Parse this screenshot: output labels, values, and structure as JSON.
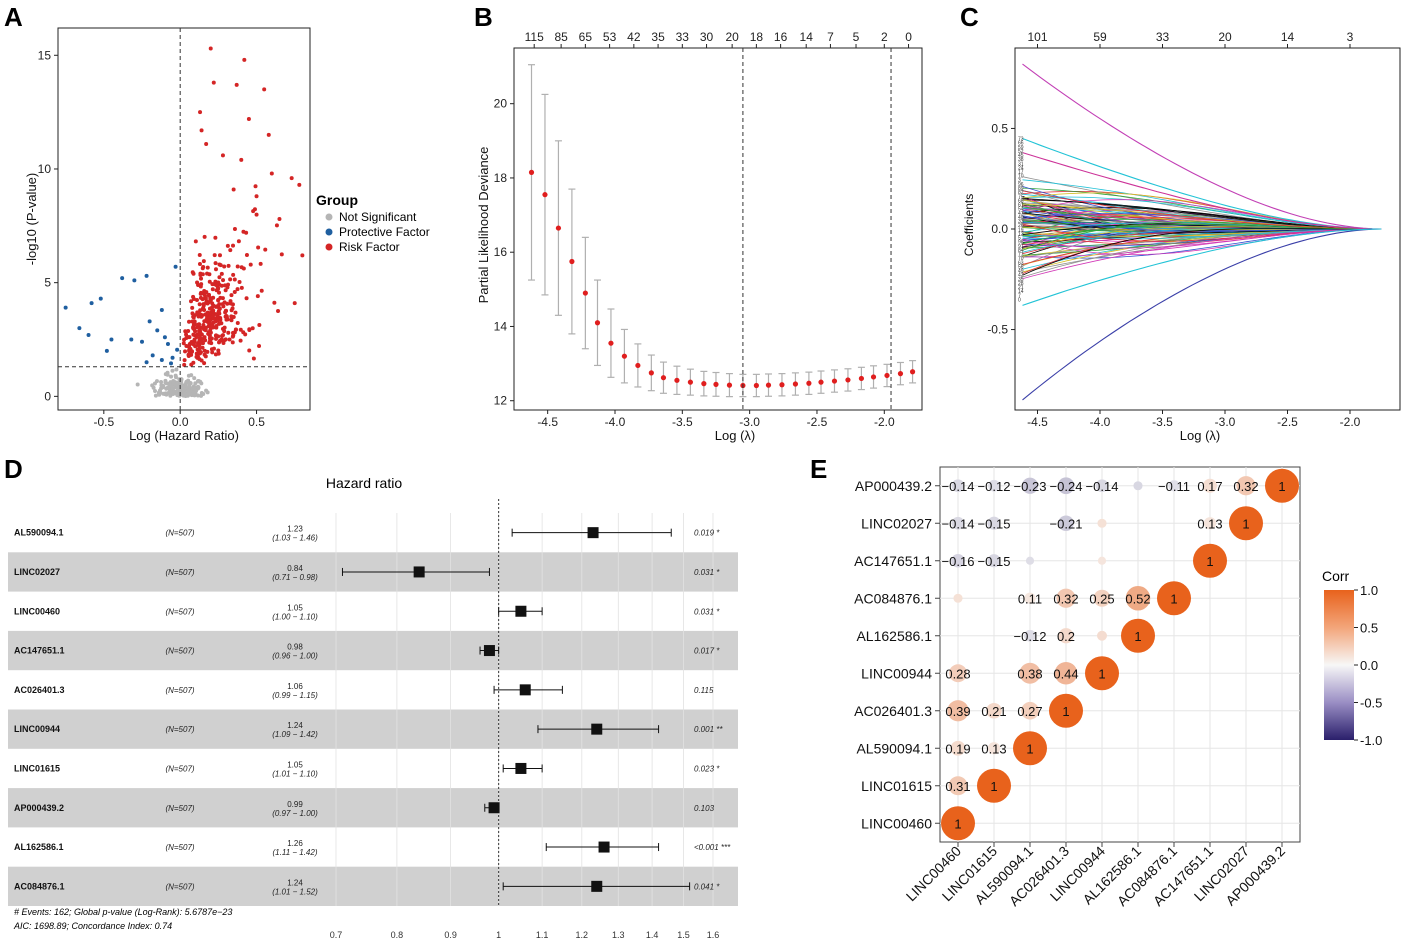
{
  "panels": {
    "a": "A",
    "b": "B",
    "c": "C",
    "d": "D",
    "e": "E"
  },
  "chart_data": [
    {
      "type": "scatter",
      "id": "A",
      "title": "",
      "xlabel": "Log (Hazard Ratio)",
      "ylabel": "-log10 (P-value)",
      "xlim": [
        -0.8,
        0.85
      ],
      "ylim": [
        -0.6,
        16.2
      ],
      "xticks": [
        -0.5,
        0.0,
        0.5
      ],
      "yticks": [
        0,
        5,
        10,
        15
      ],
      "vline": 0,
      "hline": 1.3,
      "legend": {
        "title": "Group",
        "entries": [
          {
            "label": "Not Significant",
            "color": "#b5b5b5"
          },
          {
            "label": "Protective Factor",
            "color": "#1f5fa0"
          },
          {
            "label": "Risk Factor",
            "color": "#d42525"
          }
        ]
      },
      "protective": [
        {
          "x": -0.75,
          "y": 3.9
        },
        {
          "x": -0.58,
          "y": 4.1
        },
        {
          "x": -0.52,
          "y": 4.3
        },
        {
          "x": -0.38,
          "y": 5.2
        },
        {
          "x": -0.3,
          "y": 5.1
        },
        {
          "x": -0.22,
          "y": 5.3
        },
        {
          "x": -0.12,
          "y": 3.8
        },
        {
          "x": -0.2,
          "y": 3.3
        },
        {
          "x": -0.66,
          "y": 3.0
        },
        {
          "x": -0.6,
          "y": 2.7
        },
        {
          "x": -0.45,
          "y": 2.5
        },
        {
          "x": -0.32,
          "y": 2.5
        },
        {
          "x": -0.25,
          "y": 2.4
        },
        {
          "x": -0.15,
          "y": 2.9
        },
        {
          "x": -0.1,
          "y": 2.6
        },
        {
          "x": -0.08,
          "y": 2.3
        },
        {
          "x": -0.48,
          "y": 2.0
        },
        {
          "x": -0.18,
          "y": 1.8
        },
        {
          "x": -0.12,
          "y": 1.6
        },
        {
          "x": -0.05,
          "y": 1.7
        },
        {
          "x": -0.22,
          "y": 1.5
        },
        {
          "x": -0.06,
          "y": 1.45
        },
        {
          "x": -0.02,
          "y": 2.05
        },
        {
          "x": -0.03,
          "y": 5.7
        }
      ],
      "risk_extreme": [
        {
          "x": 0.2,
          "y": 15.3
        },
        {
          "x": 0.42,
          "y": 14.8
        },
        {
          "x": 0.22,
          "y": 13.8
        },
        {
          "x": 0.37,
          "y": 13.7
        },
        {
          "x": 0.55,
          "y": 13.5
        },
        {
          "x": 0.13,
          "y": 12.5
        },
        {
          "x": 0.45,
          "y": 12.2
        },
        {
          "x": 0.58,
          "y": 11.5
        },
        {
          "x": 0.14,
          "y": 11.7
        },
        {
          "x": 0.17,
          "y": 11.1
        },
        {
          "x": 0.28,
          "y": 10.6
        },
        {
          "x": 0.4,
          "y": 10.4
        },
        {
          "x": 0.6,
          "y": 9.8
        },
        {
          "x": 0.78,
          "y": 9.3
        },
        {
          "x": 0.73,
          "y": 9.6
        },
        {
          "x": 0.8,
          "y": 6.2
        },
        {
          "x": 0.75,
          "y": 4.1
        },
        {
          "x": 0.65,
          "y": 7.8
        },
        {
          "x": 0.5,
          "y": 8.8
        },
        {
          "x": 0.35,
          "y": 9.1
        }
      ],
      "risk_count_generated": 380,
      "not_significant_count_generated": 190
    },
    {
      "type": "errorbar",
      "id": "B",
      "xlabel": "Log (λ)",
      "ylabel": "Partial Likelihood Deviance",
      "xlim": [
        -4.75,
        -1.72
      ],
      "ylim": [
        11.75,
        21.5
      ],
      "xticks": [
        -4.5,
        -4.0,
        -3.5,
        -3.0,
        -2.5,
        -2.0
      ],
      "yticks": [
        12,
        14,
        16,
        18,
        20
      ],
      "top_ticks": [
        {
          "x": -4.6,
          "label": "115"
        },
        {
          "x": -4.4,
          "label": "85"
        },
        {
          "x": -4.22,
          "label": "65"
        },
        {
          "x": -4.04,
          "label": "53"
        },
        {
          "x": -3.86,
          "label": "42"
        },
        {
          "x": -3.68,
          "label": "35"
        },
        {
          "x": -3.5,
          "label": "33"
        },
        {
          "x": -3.32,
          "label": "30"
        },
        {
          "x": -3.13,
          "label": "20"
        },
        {
          "x": -2.95,
          "label": "18"
        },
        {
          "x": -2.77,
          "label": "16"
        },
        {
          "x": -2.58,
          "label": "14"
        },
        {
          "x": -2.4,
          "label": "7"
        },
        {
          "x": -2.21,
          "label": "5"
        },
        {
          "x": -2.0,
          "label": "2"
        },
        {
          "x": -1.82,
          "label": "0"
        }
      ],
      "vlines": [
        -3.05,
        -1.95
      ],
      "x": [
        -4.62,
        -4.52,
        -4.42,
        -4.32,
        -4.22,
        -4.13,
        -4.03,
        -3.93,
        -3.83,
        -3.73,
        -3.64,
        -3.54,
        -3.44,
        -3.34,
        -3.25,
        -3.15,
        -3.05,
        -2.95,
        -2.86,
        -2.76,
        -2.66,
        -2.56,
        -2.47,
        -2.37,
        -2.27,
        -2.17,
        -2.08,
        -1.98,
        -1.88,
        -1.79
      ],
      "mean": [
        18.15,
        17.55,
        16.65,
        15.75,
        14.9,
        14.1,
        13.55,
        13.2,
        12.95,
        12.75,
        12.62,
        12.55,
        12.5,
        12.46,
        12.44,
        12.42,
        12.41,
        12.41,
        12.42,
        12.43,
        12.45,
        12.47,
        12.5,
        12.53,
        12.56,
        12.6,
        12.64,
        12.68,
        12.73,
        12.78
      ],
      "err": [
        2.9,
        2.7,
        2.35,
        1.95,
        1.5,
        1.15,
        0.92,
        0.72,
        0.58,
        0.48,
        0.42,
        0.38,
        0.35,
        0.33,
        0.32,
        0.31,
        0.3,
        0.3,
        0.3,
        0.3,
        0.3,
        0.3,
        0.3,
        0.3,
        0.3,
        0.3,
        0.3,
        0.3,
        0.3,
        0.3
      ]
    },
    {
      "type": "line",
      "id": "C",
      "xlabel": "Log (λ)",
      "ylabel": "Coefficients",
      "xlim": [
        -4.68,
        -1.6
      ],
      "ylim": [
        -0.9,
        0.9
      ],
      "xticks": [
        -4.5,
        -4.0,
        -3.5,
        -3.0,
        -2.5,
        -2.0
      ],
      "yticks": [
        -0.5,
        0.0,
        0.5
      ],
      "top_ticks": [
        {
          "x": -4.5,
          "label": "101"
        },
        {
          "x": -4.0,
          "label": "59"
        },
        {
          "x": -3.5,
          "label": "33"
        },
        {
          "x": -3.0,
          "label": "20"
        },
        {
          "x": -2.5,
          "label": "14"
        },
        {
          "x": -2.0,
          "label": "3"
        }
      ],
      "x_start": -4.62,
      "x_end": -1.75,
      "n_paths": 115,
      "highlight": [
        {
          "start": 0.82,
          "color": "#c23fb5"
        },
        {
          "start": -0.85,
          "color": "#3a3fa8"
        },
        {
          "start": 0.45,
          "color": "#22c3d6"
        },
        {
          "start": 0.38,
          "color": "#cc3399"
        },
        {
          "start": -0.38,
          "color": "#22c3d6"
        }
      ]
    },
    {
      "type": "forest",
      "id": "D",
      "title": "Hazard ratio",
      "xticks": [
        0.7,
        0.8,
        0.9,
        1,
        1.1,
        1.2,
        1.3,
        1.4,
        1.5,
        1.6
      ],
      "rows": [
        {
          "name": "AL590094.1",
          "n": "(N=507)",
          "hr": "1.23",
          "ci": "(1.03 − 1.46)",
          "lo": 1.03,
          "hi": 1.46,
          "est": 1.23,
          "p": "0.019 *",
          "shade": false
        },
        {
          "name": "LINC02027",
          "n": "(N=507)",
          "hr": "0.84",
          "ci": "(0.71 − 0.98)",
          "lo": 0.71,
          "hi": 0.98,
          "est": 0.84,
          "p": "0.031 *",
          "shade": true
        },
        {
          "name": "LINC00460",
          "n": "(N=507)",
          "hr": "1.05",
          "ci": "(1.00 − 1.10)",
          "lo": 1.0,
          "hi": 1.1,
          "est": 1.05,
          "p": "0.031 *",
          "shade": false
        },
        {
          "name": "AC147651.1",
          "n": "(N=507)",
          "hr": "0.98",
          "ci": "(0.96 − 1.00)",
          "lo": 0.96,
          "hi": 1.0,
          "est": 0.98,
          "p": "0.017 *",
          "shade": true
        },
        {
          "name": "AC026401.3",
          "n": "(N=507)",
          "hr": "1.06",
          "ci": "(0.99 − 1.15)",
          "lo": 0.99,
          "hi": 1.15,
          "est": 1.06,
          "p": "0.115",
          "shade": false
        },
        {
          "name": "LINC00944",
          "n": "(N=507)",
          "hr": "1.24",
          "ci": "(1.09 − 1.42)",
          "lo": 1.09,
          "hi": 1.42,
          "est": 1.24,
          "p": "0.001 **",
          "shade": true
        },
        {
          "name": "LINC01615",
          "n": "(N=507)",
          "hr": "1.05",
          "ci": "(1.01 − 1.10)",
          "lo": 1.01,
          "hi": 1.1,
          "est": 1.05,
          "p": "0.023 *",
          "shade": false
        },
        {
          "name": "AP000439.2",
          "n": "(N=507)",
          "hr": "0.99",
          "ci": "(0.97 − 1.00)",
          "lo": 0.97,
          "hi": 1.0,
          "est": 0.99,
          "p": "0.103",
          "shade": true
        },
        {
          "name": "AL162586.1",
          "n": "(N=507)",
          "hr": "1.26",
          "ci": "(1.11 − 1.42)",
          "lo": 1.11,
          "hi": 1.42,
          "est": 1.26,
          "p": "<0.001 ***",
          "shade": false
        },
        {
          "name": "AC084876.1",
          "n": "(N=507)",
          "hr": "1.24",
          "ci": "(1.01 − 1.52)",
          "lo": 1.01,
          "hi": 1.52,
          "est": 1.24,
          "p": "0.041 *",
          "shade": true
        }
      ],
      "footer1": "# Events: 162; Global p-value (Log-Rank): 5.6787e−23",
      "footer2": "AIC: 1698.89; Concordance Index: 0.74"
    },
    {
      "type": "heatmap",
      "id": "E",
      "legend_title": "Corr",
      "legend_ticks": [
        "1.0",
        "0.5",
        "0.0",
        "-0.5",
        "-1.0"
      ],
      "labels": [
        "LINC00460",
        "LINC01615",
        "AL590094.1",
        "AC026401.3",
        "LINC00944",
        "AL162586.1",
        "AC084876.1",
        "AC147651.1",
        "LINC02027",
        "AP000439.2"
      ],
      "cells": [
        {
          "row": "AP000439.2",
          "col": "LINC00460",
          "v": -0.14,
          "t": "−0.14"
        },
        {
          "row": "AP000439.2",
          "col": "LINC01615",
          "v": -0.12,
          "t": "−0.12"
        },
        {
          "row": "AP000439.2",
          "col": "AL590094.1",
          "v": -0.23,
          "t": "−0.23"
        },
        {
          "row": "AP000439.2",
          "col": "AC026401.3",
          "v": -0.24,
          "t": "−0.24"
        },
        {
          "row": "AP000439.2",
          "col": "LINC00944",
          "v": -0.14,
          "t": "−0.14"
        },
        {
          "row": "AP000439.2",
          "col": "AC084876.1",
          "v": -0.11,
          "t": "−0.11"
        },
        {
          "row": "AP000439.2",
          "col": "AC147651.1",
          "v": 0.17,
          "t": "0.17"
        },
        {
          "row": "AP000439.2",
          "col": "LINC02027",
          "v": 0.32,
          "t": "0.32"
        },
        {
          "row": "AP000439.2",
          "col": "AP000439.2",
          "v": 1,
          "t": "1"
        },
        {
          "row": "LINC02027",
          "col": "LINC00460",
          "v": -0.14,
          "t": "−0.14"
        },
        {
          "row": "LINC02027",
          "col": "LINC01615",
          "v": -0.15,
          "t": "−0.15"
        },
        {
          "row": "LINC02027",
          "col": "AC026401.3",
          "v": -0.21,
          "t": "−0.21"
        },
        {
          "row": "LINC02027",
          "col": "AC147651.1",
          "v": 0.13,
          "t": "0.13"
        },
        {
          "row": "LINC02027",
          "col": "LINC02027",
          "v": 1,
          "t": "1"
        },
        {
          "row": "AC147651.1",
          "col": "LINC00460",
          "v": -0.16,
          "t": "−0.16"
        },
        {
          "row": "AC147651.1",
          "col": "LINC01615",
          "v": -0.15,
          "t": "−0.15"
        },
        {
          "row": "AC147651.1",
          "col": "AC147651.1",
          "v": 1,
          "t": "1"
        },
        {
          "row": "AC084876.1",
          "col": "AL590094.1",
          "v": 0.11,
          "t": "0.11"
        },
        {
          "row": "AC084876.1",
          "col": "AC026401.3",
          "v": 0.32,
          "t": "0.32"
        },
        {
          "row": "AC084876.1",
          "col": "LINC00944",
          "v": 0.25,
          "t": "0.25"
        },
        {
          "row": "AC084876.1",
          "col": "AL162586.1",
          "v": 0.52,
          "t": "0.52"
        },
        {
          "row": "AC084876.1",
          "col": "AC084876.1",
          "v": 1,
          "t": "1"
        },
        {
          "row": "AL162586.1",
          "col": "AL590094.1",
          "v": -0.12,
          "t": "−0.12"
        },
        {
          "row": "AL162586.1",
          "col": "AC026401.3",
          "v": 0.2,
          "t": "0.2"
        },
        {
          "row": "AL162586.1",
          "col": "AL162586.1",
          "v": 1,
          "t": "1"
        },
        {
          "row": "LINC00944",
          "col": "LINC00460",
          "v": 0.28,
          "t": "0.28"
        },
        {
          "row": "LINC00944",
          "col": "AL590094.1",
          "v": 0.38,
          "t": "0.38"
        },
        {
          "row": "LINC00944",
          "col": "AC026401.3",
          "v": 0.44,
          "t": "0.44"
        },
        {
          "row": "LINC00944",
          "col": "LINC00944",
          "v": 1,
          "t": "1"
        },
        {
          "row": "AC026401.3",
          "col": "LINC00460",
          "v": 0.39,
          "t": "0.39"
        },
        {
          "row": "AC026401.3",
          "col": "LINC01615",
          "v": 0.21,
          "t": "0.21"
        },
        {
          "row": "AC026401.3",
          "col": "AL590094.1",
          "v": 0.27,
          "t": "0.27"
        },
        {
          "row": "AC026401.3",
          "col": "AC026401.3",
          "v": 1,
          "t": "1"
        },
        {
          "row": "AL590094.1",
          "col": "LINC00460",
          "v": 0.19,
          "t": "0.19"
        },
        {
          "row": "AL590094.1",
          "col": "LINC01615",
          "v": 0.13,
          "t": "0.13"
        },
        {
          "row": "AL590094.1",
          "col": "AL590094.1",
          "v": 1,
          "t": "1"
        },
        {
          "row": "LINC01615",
          "col": "LINC00460",
          "v": 0.31,
          "t": "0.31"
        },
        {
          "row": "LINC01615",
          "col": "LINC01615",
          "v": 1,
          "t": "1"
        },
        {
          "row": "LINC00460",
          "col": "LINC00460",
          "v": 1,
          "t": "1"
        }
      ],
      "faint_cells": [
        {
          "row": "AC147651.1",
          "col": "AL590094.1",
          "v": -0.04
        },
        {
          "row": "AC084876.1",
          "col": "LINC00460",
          "v": 0.05
        },
        {
          "row": "AL162586.1",
          "col": "LINC00944",
          "v": 0.06
        },
        {
          "row": "AP000439.2",
          "col": "AL162586.1",
          "v": -0.05
        },
        {
          "row": "LINC02027",
          "col": "LINC00944",
          "v": 0.05
        },
        {
          "row": "AC147651.1",
          "col": "LINC00944",
          "v": 0.04
        }
      ]
    }
  ]
}
